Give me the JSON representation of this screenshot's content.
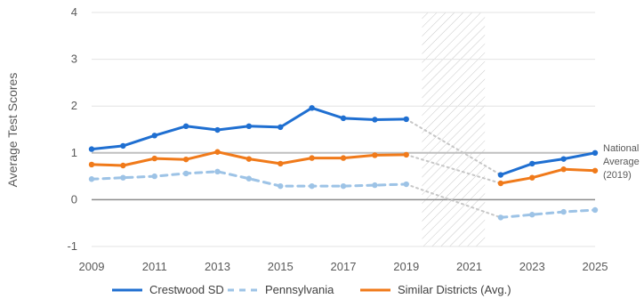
{
  "chart_data": {
    "type": "line",
    "ylabel": "Average Test Scores",
    "xlabel": "",
    "title": "",
    "xlim": [
      2009,
      2025
    ],
    "ylim": [
      -1,
      4
    ],
    "x_ticks": [
      2009,
      2011,
      2013,
      2015,
      2017,
      2019,
      2021,
      2023,
      2025
    ],
    "y_ticks": [
      -1,
      0,
      1,
      2,
      3,
      4
    ],
    "grid": "horizontal",
    "legend_position": "bottom",
    "shaded_gap": [
      2019.5,
      2021.5
    ],
    "reference_line": {
      "value": 1,
      "label": "National Average (2019)",
      "label_lines": [
        "National",
        "Average",
        "(2019)"
      ]
    },
    "series": [
      {
        "name": "Crestwood SD",
        "color": "#1f6fd1",
        "style": "solid",
        "x": [
          2009,
          2010,
          2011,
          2012,
          2013,
          2014,
          2015,
          2016,
          2017,
          2018,
          2019,
          2022,
          2023,
          2024,
          2025
        ],
        "values": [
          1.08,
          1.15,
          1.37,
          1.57,
          1.49,
          1.57,
          1.55,
          1.96,
          1.74,
          1.71,
          1.72,
          0.53,
          0.77,
          0.87,
          1.0
        ]
      },
      {
        "name": "Pennsylvania",
        "color": "#9dc3e6",
        "style": "dashed",
        "x": [
          2009,
          2010,
          2011,
          2012,
          2013,
          2014,
          2015,
          2016,
          2017,
          2018,
          2019,
          2022,
          2023,
          2024,
          2025
        ],
        "values": [
          0.44,
          0.47,
          0.5,
          0.56,
          0.6,
          0.45,
          0.29,
          0.29,
          0.29,
          0.31,
          0.33,
          -0.38,
          -0.32,
          -0.26,
          -0.22
        ]
      },
      {
        "name": "Similar Districts (Avg.)",
        "color": "#f07a1a",
        "style": "solid",
        "x": [
          2009,
          2010,
          2011,
          2012,
          2013,
          2014,
          2015,
          2016,
          2017,
          2018,
          2019,
          2022,
          2023,
          2024,
          2025
        ],
        "values": [
          0.75,
          0.73,
          0.88,
          0.86,
          1.02,
          0.87,
          0.77,
          0.89,
          0.89,
          0.95,
          0.96,
          0.35,
          0.47,
          0.65,
          0.62
        ]
      }
    ]
  }
}
